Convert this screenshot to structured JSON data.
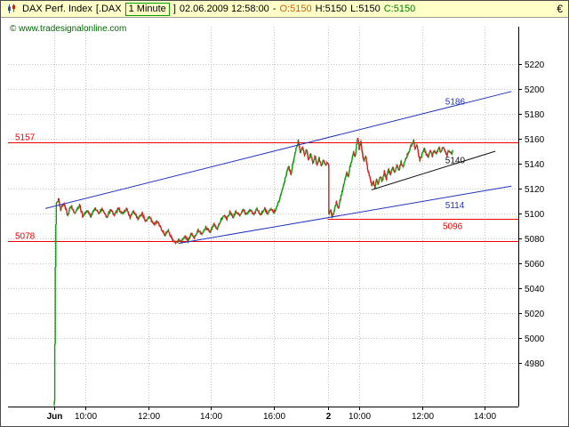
{
  "title_bar": {
    "instrument": "DAX Perf. Index",
    "bracket_open": "[.DAX",
    "period": "1 Minute",
    "bracket_close": "]",
    "datetime": "02.06.2009 12:58:00",
    "dash": "-",
    "open_text": "O:5150",
    "high_text": "H:5150",
    "low_text": "L:5150",
    "close_text": "C:5150",
    "currency": "€",
    "icon": "candlestick-chart-icon"
  },
  "watermark": {
    "text": "© www.tradesignalonline.com"
  },
  "colors": {
    "titlebar_bg": "#ffffc8",
    "open_text": "#e05a00",
    "close_text": "#008000",
    "period_border": "#00a000",
    "watermark": "#006600"
  },
  "chart_data": {
    "type": "candlestick",
    "title": "DAX Perf. Index [.DAX 1 Minute]",
    "timeframe_minutes": 1,
    "current_bar": {
      "time": "02.06.2009 12:58:00",
      "open": 5150,
      "high": 5150,
      "low": 5150,
      "close": 5150
    },
    "ylim": [
      4945,
      5250
    ],
    "yticks": [
      4980,
      5000,
      5020,
      5040,
      5060,
      5080,
      5100,
      5120,
      5140,
      5160,
      5180,
      5200,
      5220
    ],
    "xticks": [
      {
        "label": "Jun",
        "min": 0,
        "bold": true
      },
      {
        "label": "10:00",
        "min": 60
      },
      {
        "label": "12:00",
        "min": 180
      },
      {
        "label": "14:00",
        "min": 300
      },
      {
        "label": "16:00",
        "min": 420
      },
      {
        "label": "2",
        "min": 525,
        "bold": true
      },
      {
        "label": "10:00",
        "min": 585
      },
      {
        "label": "12:00",
        "min": 705
      },
      {
        "label": "14:00",
        "min": 825
      }
    ],
    "levels": [
      {
        "price": 5157,
        "label": "5157",
        "label_side": "left",
        "label_pos": "above",
        "color": "#ee0000"
      },
      {
        "price": 5078,
        "label": "5078",
        "label_side": "left",
        "label_pos": "above",
        "color": "#ee0000"
      },
      {
        "price": 5096,
        "label": "5096",
        "label_side": "right",
        "label_pos": "below",
        "from_min": 524,
        "color": "#ee0000"
      }
    ],
    "trendlines": [
      {
        "from": [
          -17,
          5104
        ],
        "to": [
          876,
          5198
        ],
        "color": "#2233bb",
        "label": "5186",
        "label_min": 749,
        "label_pos": "above"
      },
      {
        "from": [
          238,
          5076
        ],
        "to": [
          876,
          5122
        ],
        "color": "#2233bb",
        "label": "5114",
        "label_min": 749,
        "label_pos": "below"
      },
      {
        "from": [
          608,
          5119
        ],
        "to": [
          845,
          5150
        ],
        "color": "#111111",
        "label": "5140",
        "label_min": 749,
        "label_pos": "above"
      }
    ],
    "candles": {
      "seed": 1234567,
      "noise": 1.1,
      "wick": 1.3
    },
    "price_path": [
      [
        0,
        4948
      ],
      [
        1,
        4995
      ],
      [
        2,
        5058
      ],
      [
        3,
        5092
      ],
      [
        4,
        5108
      ],
      [
        8,
        5112
      ],
      [
        12,
        5103
      ],
      [
        18,
        5109
      ],
      [
        25,
        5099
      ],
      [
        32,
        5106
      ],
      [
        40,
        5100
      ],
      [
        48,
        5107
      ],
      [
        55,
        5097
      ],
      [
        62,
        5103
      ],
      [
        70,
        5098
      ],
      [
        78,
        5105
      ],
      [
        85,
        5100
      ],
      [
        92,
        5104
      ],
      [
        100,
        5097
      ],
      [
        108,
        5103
      ],
      [
        115,
        5098
      ],
      [
        122,
        5104
      ],
      [
        130,
        5100
      ],
      [
        138,
        5104
      ],
      [
        145,
        5097
      ],
      [
        152,
        5102
      ],
      [
        160,
        5096
      ],
      [
        168,
        5100
      ],
      [
        175,
        5094
      ],
      [
        182,
        5097
      ],
      [
        190,
        5091
      ],
      [
        198,
        5094
      ],
      [
        205,
        5087
      ],
      [
        212,
        5083
      ],
      [
        218,
        5086
      ],
      [
        225,
        5080
      ],
      [
        232,
        5076
      ],
      [
        238,
        5079
      ],
      [
        244,
        5077
      ],
      [
        250,
        5082
      ],
      [
        256,
        5078
      ],
      [
        262,
        5084
      ],
      [
        268,
        5080
      ],
      [
        275,
        5087
      ],
      [
        282,
        5083
      ],
      [
        290,
        5089
      ],
      [
        298,
        5085
      ],
      [
        305,
        5091
      ],
      [
        312,
        5088
      ],
      [
        318,
        5094
      ],
      [
        325,
        5099
      ],
      [
        330,
        5095
      ],
      [
        336,
        5101
      ],
      [
        342,
        5097
      ],
      [
        348,
        5102
      ],
      [
        355,
        5098
      ],
      [
        362,
        5103
      ],
      [
        368,
        5099
      ],
      [
        375,
        5104
      ],
      [
        382,
        5099
      ],
      [
        388,
        5103
      ],
      [
        395,
        5099
      ],
      [
        402,
        5104
      ],
      [
        408,
        5100
      ],
      [
        415,
        5103
      ],
      [
        420,
        5101
      ],
      [
        425,
        5104
      ],
      [
        430,
        5110
      ],
      [
        436,
        5118
      ],
      [
        442,
        5128
      ],
      [
        448,
        5138
      ],
      [
        453,
        5132
      ],
      [
        458,
        5142
      ],
      [
        462,
        5150
      ],
      [
        467,
        5158
      ],
      [
        471,
        5149
      ],
      [
        475,
        5154
      ],
      [
        479,
        5146
      ],
      [
        483,
        5152
      ],
      [
        487,
        5143
      ],
      [
        491,
        5148
      ],
      [
        495,
        5140
      ],
      [
        499,
        5146
      ],
      [
        503,
        5139
      ],
      [
        507,
        5144
      ],
      [
        511,
        5138
      ],
      [
        515,
        5143
      ],
      [
        519,
        5139
      ],
      [
        523,
        5141
      ],
      [
        525,
        5140
      ],
      [
        526,
        5100
      ],
      [
        529,
        5104
      ],
      [
        532,
        5097
      ],
      [
        536,
        5103
      ],
      [
        540,
        5109
      ],
      [
        544,
        5104
      ],
      [
        548,
        5112
      ],
      [
        552,
        5119
      ],
      [
        556,
        5126
      ],
      [
        560,
        5134
      ],
      [
        563,
        5129
      ],
      [
        566,
        5137
      ],
      [
        570,
        5144
      ],
      [
        573,
        5150
      ],
      [
        576,
        5146
      ],
      [
        579,
        5155
      ],
      [
        581,
        5161
      ],
      [
        584,
        5152
      ],
      [
        587,
        5157
      ],
      [
        590,
        5148
      ],
      [
        593,
        5142
      ],
      [
        596,
        5147
      ],
      [
        599,
        5138
      ],
      [
        602,
        5132
      ],
      [
        605,
        5127
      ],
      [
        608,
        5122
      ],
      [
        611,
        5126
      ],
      [
        614,
        5121
      ],
      [
        617,
        5127
      ],
      [
        620,
        5123
      ],
      [
        624,
        5130
      ],
      [
        628,
        5126
      ],
      [
        632,
        5133
      ],
      [
        636,
        5128
      ],
      [
        640,
        5135
      ],
      [
        644,
        5131
      ],
      [
        648,
        5137
      ],
      [
        652,
        5133
      ],
      [
        656,
        5139
      ],
      [
        660,
        5135
      ],
      [
        664,
        5141
      ],
      [
        668,
        5137
      ],
      [
        672,
        5143
      ],
      [
        676,
        5147
      ],
      [
        680,
        5151
      ],
      [
        684,
        5155
      ],
      [
        688,
        5159
      ],
      [
        691,
        5152
      ],
      [
        694,
        5156
      ],
      [
        697,
        5148
      ],
      [
        700,
        5143
      ],
      [
        704,
        5147
      ],
      [
        708,
        5152
      ],
      [
        712,
        5148
      ],
      [
        716,
        5145
      ],
      [
        720,
        5150
      ],
      [
        724,
        5146
      ],
      [
        728,
        5151
      ],
      [
        732,
        5148
      ],
      [
        736,
        5153
      ],
      [
        740,
        5149
      ],
      [
        744,
        5154
      ],
      [
        748,
        5150
      ],
      [
        752,
        5147
      ],
      [
        756,
        5151
      ],
      [
        760,
        5148
      ],
      [
        763,
        5150
      ]
    ],
    "colors": {
      "up": "#0f9b0f",
      "down": "#d42020",
      "grid": "#c4c4c4",
      "axis": "#000000"
    },
    "legend_position": "none",
    "grid": true
  }
}
